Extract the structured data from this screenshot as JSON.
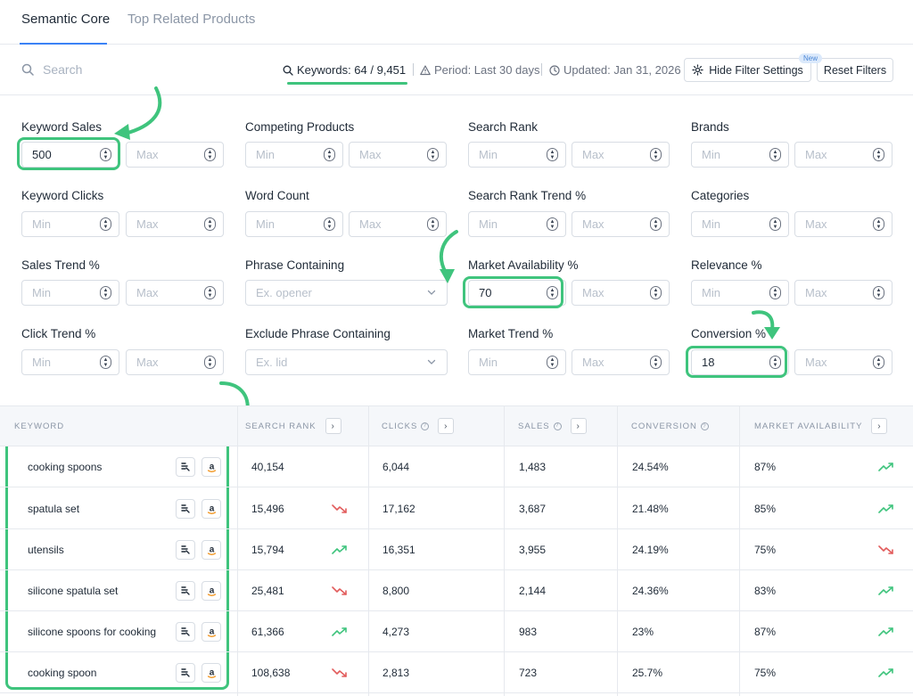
{
  "tabs": [
    {
      "label": "Semantic Core",
      "active": true
    },
    {
      "label": "Top Related Products",
      "active": false
    }
  ],
  "toolbar": {
    "search_placeholder": "Search",
    "keywords": "Keywords: 64 / 9,451",
    "period": "Period: Last 30 days",
    "updated": "Updated: Jan 31, 2026",
    "hide_filter_label": "Hide Filter Settings",
    "new_badge": "New",
    "reset_label": "Reset Filters"
  },
  "filters": {
    "keyword_sales": {
      "label": "Keyword Sales",
      "min": "500",
      "max_placeholder": "Max"
    },
    "competing_products": {
      "label": "Competing Products",
      "min_placeholder": "Min",
      "max_placeholder": "Max"
    },
    "search_rank": {
      "label": "Search Rank",
      "min_placeholder": "Min",
      "max_placeholder": "Max"
    },
    "brands": {
      "label": "Brands",
      "min_placeholder": "Min",
      "max_placeholder": "Max"
    },
    "keyword_clicks": {
      "label": "Keyword Clicks",
      "min_placeholder": "Min",
      "max_placeholder": "Max"
    },
    "word_count": {
      "label": "Word Count",
      "min_placeholder": "Min",
      "max_placeholder": "Max"
    },
    "search_rank_trend": {
      "label": "Search Rank Trend %",
      "min_placeholder": "Min",
      "max_placeholder": "Max"
    },
    "categories": {
      "label": "Categories",
      "min_placeholder": "Min",
      "max_placeholder": "Max"
    },
    "sales_trend": {
      "label": "Sales Trend %",
      "min_placeholder": "Min",
      "max_placeholder": "Max"
    },
    "phrase_containing": {
      "label": "Phrase Containing",
      "placeholder": "Ex. opener"
    },
    "market_availability": {
      "label": "Market Availability %",
      "min": "70",
      "max_placeholder": "Max"
    },
    "relevance": {
      "label": "Relevance %",
      "min_placeholder": "Min",
      "max_placeholder": "Max"
    },
    "click_trend": {
      "label": "Click Trend %",
      "min_placeholder": "Min",
      "max_placeholder": "Max"
    },
    "exclude_phrase": {
      "label": "Exclude Phrase Containing",
      "placeholder": "Ex. lid"
    },
    "market_trend": {
      "label": "Market Trend %",
      "min_placeholder": "Min",
      "max_placeholder": "Max"
    },
    "conversion": {
      "label": "Conversion %",
      "min": "18",
      "max_placeholder": "Max"
    }
  },
  "table": {
    "headers": {
      "keyword": "KEYWORD",
      "search_rank": "SEARCH RANK",
      "clicks": "CLICKS",
      "sales": "SALES",
      "conversion": "CONVERSION",
      "market_availability": "MARKET AVAILABILITY"
    },
    "rows": [
      {
        "keyword": "cooking spoons",
        "search_rank": "40,154",
        "rank_trend": "none",
        "clicks": "6,044",
        "sales": "1,483",
        "conversion": "24.54%",
        "market_availability": "87%",
        "market_trend": "up"
      },
      {
        "keyword": "spatula set",
        "search_rank": "15,496",
        "rank_trend": "down",
        "clicks": "17,162",
        "sales": "3,687",
        "conversion": "21.48%",
        "market_availability": "85%",
        "market_trend": "up"
      },
      {
        "keyword": "utensils",
        "search_rank": "15,794",
        "rank_trend": "up",
        "clicks": "16,351",
        "sales": "3,955",
        "conversion": "24.19%",
        "market_availability": "75%",
        "market_trend": "down"
      },
      {
        "keyword": "silicone spatula set",
        "search_rank": "25,481",
        "rank_trend": "down",
        "clicks": "8,800",
        "sales": "2,144",
        "conversion": "24.36%",
        "market_availability": "83%",
        "market_trend": "up"
      },
      {
        "keyword": "silicone spoons for cooking",
        "search_rank": "61,366",
        "rank_trend": "up",
        "clicks": "4,273",
        "sales": "983",
        "conversion": "23%",
        "market_availability": "87%",
        "market_trend": "up"
      },
      {
        "keyword": "cooking spoon",
        "search_rank": "108,638",
        "rank_trend": "down",
        "clicks": "2,813",
        "sales": "723",
        "conversion": "25.7%",
        "market_availability": "75%",
        "market_trend": "up"
      }
    ]
  },
  "colors": {
    "accent": "#3b82f6",
    "highlight": "#3fc47d",
    "trend_up": "#3fc47d",
    "trend_down": "#e25c5c",
    "amazon": "#f08804"
  }
}
